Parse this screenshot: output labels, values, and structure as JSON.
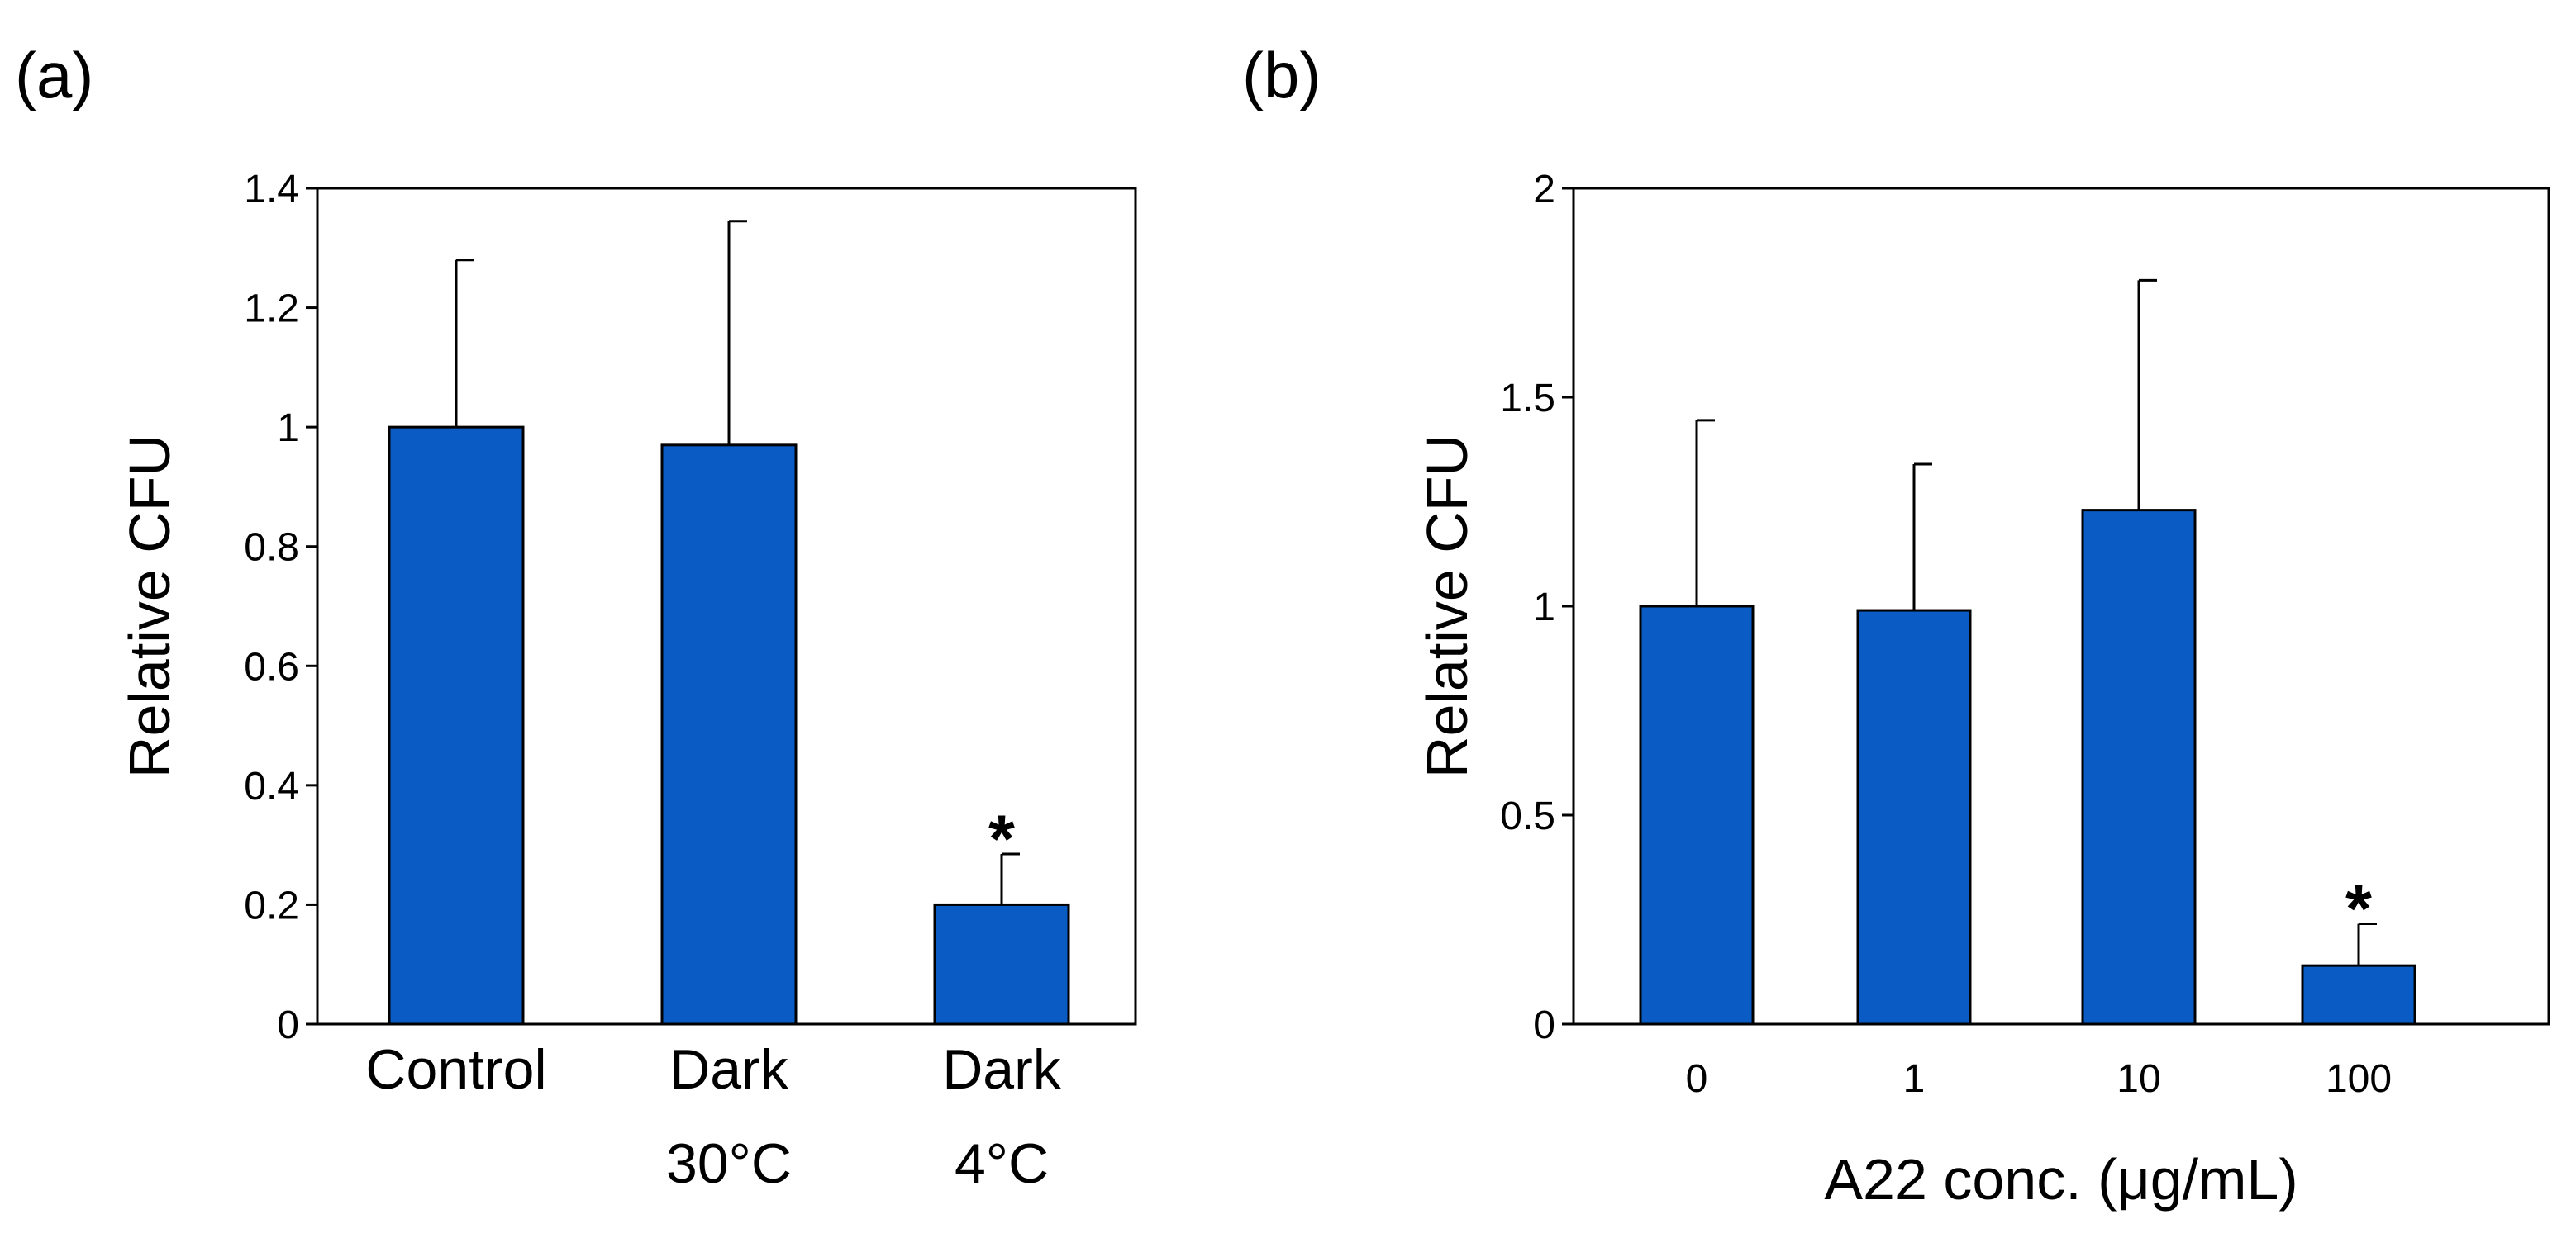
{
  "chart_data": [
    {
      "panel_label": "(a)",
      "type": "bar",
      "categories": [
        [
          "Control"
        ],
        [
          "Dark",
          "30°C"
        ],
        [
          "Dark",
          "4°C"
        ]
      ],
      "values": [
        1.0,
        0.97,
        0.2
      ],
      "error_upper": [
        1.28,
        1.345,
        0.285
      ],
      "annotations": [
        "",
        "",
        "*"
      ],
      "ylabel": "Relative CFU",
      "xlabel": "",
      "ylim": [
        0,
        1.4
      ],
      "yticks": [
        0,
        0.2,
        0.4,
        0.6,
        0.8,
        1,
        1.2,
        1.4
      ],
      "ytick_labels": [
        "0",
        "0.2",
        "0.4",
        "0.6",
        "0.8",
        "1",
        "1.2",
        "1.4"
      ],
      "bar_color": "#0A5BC4"
    },
    {
      "panel_label": "(b)",
      "type": "bar",
      "categories": [
        [
          "0"
        ],
        [
          "1"
        ],
        [
          "10"
        ],
        [
          "100"
        ]
      ],
      "values": [
        1.0,
        0.99,
        1.23,
        0.14
      ],
      "error_upper": [
        1.445,
        1.34,
        1.78,
        0.24
      ],
      "annotations": [
        "",
        "",
        "",
        "*"
      ],
      "ylabel": "Relative CFU",
      "xlabel": "A22 conc. (μg/mL)",
      "ylim": [
        0,
        2
      ],
      "yticks": [
        0,
        0.5,
        1,
        1.5,
        2
      ],
      "ytick_labels": [
        "0",
        "0.5",
        "1",
        "1.5",
        "2"
      ],
      "bar_color": "#0A5BC4"
    }
  ]
}
